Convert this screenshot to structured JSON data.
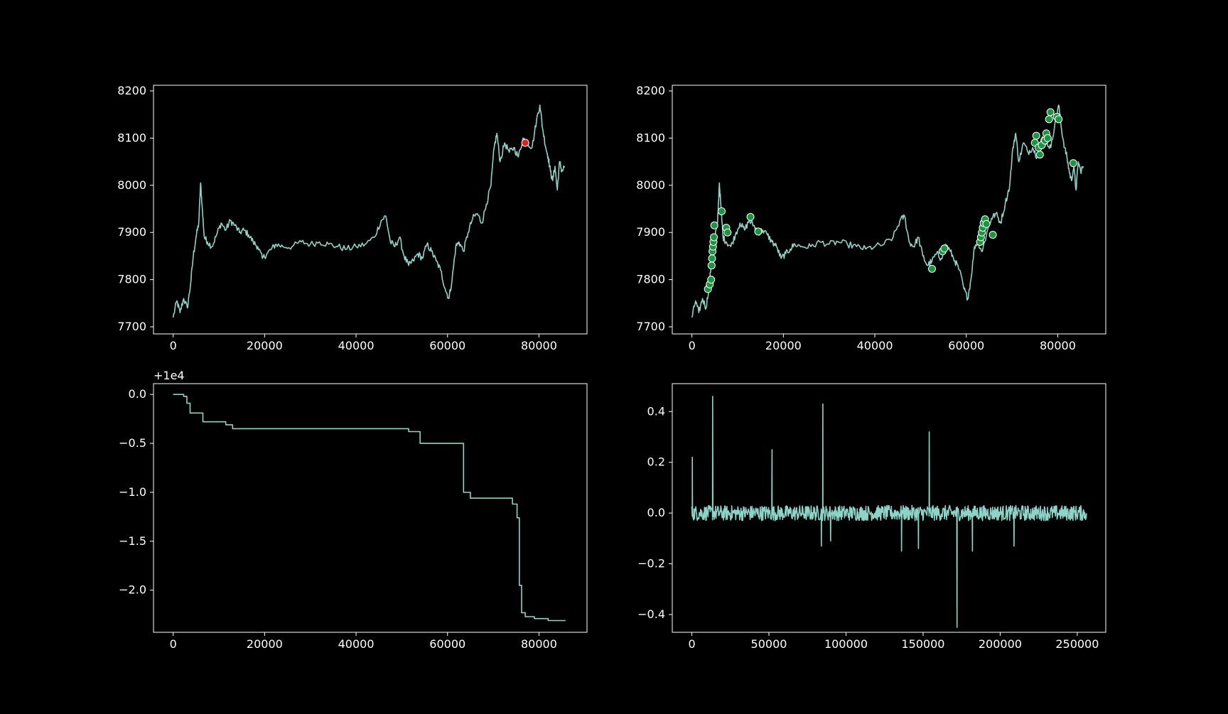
{
  "figure": {
    "background": "#000000",
    "foreground": "#ffffff",
    "line_color": "#8dd3c7"
  },
  "chart_data": [
    {
      "type": "line",
      "panel": "top-left",
      "title": "",
      "xlabel": "",
      "ylabel": "",
      "xlim": [
        -4300,
        90500
      ],
      "ylim": [
        7685,
        8212
      ],
      "xticks": [
        0,
        20000,
        40000,
        60000,
        80000
      ],
      "yticks": [
        7700,
        7800,
        7900,
        8000,
        8100,
        8200
      ],
      "x": [
        0,
        800,
        1500,
        2300,
        3100,
        3800,
        4400,
        5000,
        5600,
        6000,
        6300,
        6800,
        7500,
        8500,
        9500,
        10500,
        11500,
        12500,
        13500,
        14500,
        15500,
        16500,
        17500,
        18500,
        19500,
        20500,
        21500,
        22500,
        24000,
        26000,
        28000,
        30000,
        32000,
        34000,
        36000,
        38000,
        40000,
        42000,
        44000,
        45500,
        46500,
        47500,
        48500,
        49500,
        50500,
        51500,
        52500,
        53500,
        54500,
        55500,
        56500,
        57500,
        58500,
        59500,
        60300,
        61000,
        61800,
        62500,
        63500,
        64500,
        65500,
        66500,
        67500,
        68500,
        69500,
        70200,
        70800,
        71500,
        72500,
        73500,
        74500,
        75500,
        76500,
        77500,
        78500,
        79500,
        80200,
        80800,
        81500,
        82000,
        82500,
        83000,
        83500,
        84000,
        84500,
        85000,
        85600
      ],
      "values": [
        7720,
        7755,
        7730,
        7760,
        7740,
        7790,
        7850,
        7890,
        7920,
        8005,
        7960,
        7890,
        7880,
        7870,
        7895,
        7920,
        7905,
        7925,
        7915,
        7900,
        7905,
        7895,
        7880,
        7870,
        7845,
        7855,
        7865,
        7875,
        7870,
        7870,
        7880,
        7875,
        7880,
        7875,
        7870,
        7865,
        7870,
        7875,
        7890,
        7925,
        7935,
        7880,
        7870,
        7890,
        7850,
        7830,
        7840,
        7855,
        7845,
        7875,
        7860,
        7840,
        7820,
        7780,
        7760,
        7800,
        7870,
        7880,
        7860,
        7900,
        7930,
        7940,
        7920,
        7960,
        8000,
        8080,
        8110,
        8050,
        8090,
        8070,
        8080,
        8060,
        8100,
        8090,
        8080,
        8140,
        8170,
        8120,
        8080,
        8060,
        8030,
        8010,
        8040,
        7990,
        8050,
        8030,
        8040
      ],
      "markers": [
        {
          "x": 77000,
          "y": 8090,
          "color": "#e41a1c"
        }
      ]
    },
    {
      "type": "line",
      "panel": "top-right",
      "title": "",
      "xlabel": "",
      "ylabel": "",
      "xlim": [
        -4300,
        90500
      ],
      "ylim": [
        7685,
        8212
      ],
      "xticks": [
        0,
        20000,
        40000,
        60000,
        80000
      ],
      "yticks": [
        7700,
        7800,
        7900,
        8000,
        8100,
        8200
      ],
      "x": [
        0,
        800,
        1500,
        2300,
        3100,
        3800,
        4400,
        5000,
        5600,
        6000,
        6300,
        6800,
        7500,
        8500,
        9500,
        10500,
        11500,
        12500,
        13500,
        14500,
        15500,
        16500,
        17500,
        18500,
        19500,
        20500,
        21500,
        22500,
        24000,
        26000,
        28000,
        30000,
        32000,
        34000,
        36000,
        38000,
        40000,
        42000,
        44000,
        45500,
        46500,
        47500,
        48500,
        49500,
        50500,
        51500,
        52500,
        53500,
        54500,
        55500,
        56500,
        57500,
        58500,
        59500,
        60300,
        61000,
        61800,
        62500,
        63500,
        64500,
        65500,
        66500,
        67500,
        68500,
        69500,
        70200,
        70800,
        71500,
        72500,
        73500,
        74500,
        75500,
        76500,
        77500,
        78500,
        79500,
        80200,
        80800,
        81500,
        82000,
        82500,
        83000,
        83500,
        84000,
        84500,
        85000,
        85600
      ],
      "values": [
        7720,
        7755,
        7730,
        7760,
        7740,
        7790,
        7850,
        7890,
        7920,
        8005,
        7960,
        7890,
        7880,
        7870,
        7895,
        7920,
        7905,
        7925,
        7915,
        7900,
        7905,
        7895,
        7880,
        7870,
        7845,
        7855,
        7865,
        7875,
        7870,
        7870,
        7880,
        7875,
        7880,
        7875,
        7870,
        7865,
        7870,
        7875,
        7890,
        7925,
        7935,
        7880,
        7870,
        7890,
        7850,
        7830,
        7840,
        7855,
        7845,
        7875,
        7860,
        7840,
        7820,
        7780,
        7760,
        7800,
        7870,
        7880,
        7860,
        7900,
        7930,
        7940,
        7920,
        7960,
        8000,
        8080,
        8110,
        8050,
        8090,
        8070,
        8080,
        8060,
        8100,
        8090,
        8080,
        8140,
        8170,
        8120,
        8080,
        8060,
        8030,
        8010,
        8040,
        7990,
        8050,
        8030,
        8040
      ],
      "markers": [
        {
          "x": 3500,
          "y": 7780,
          "color": "#1a9641"
        },
        {
          "x": 3900,
          "y": 7790,
          "color": "#1a9641"
        },
        {
          "x": 4200,
          "y": 7800,
          "color": "#1a9641"
        },
        {
          "x": 4300,
          "y": 7830,
          "color": "#1a9641"
        },
        {
          "x": 4400,
          "y": 7845,
          "color": "#1a9641"
        },
        {
          "x": 4500,
          "y": 7860,
          "color": "#1a9641"
        },
        {
          "x": 4600,
          "y": 7870,
          "color": "#1a9641"
        },
        {
          "x": 4700,
          "y": 7880,
          "color": "#1a9641"
        },
        {
          "x": 4800,
          "y": 7890,
          "color": "#1a9641"
        },
        {
          "x": 4900,
          "y": 7915,
          "color": "#1a9641"
        },
        {
          "x": 6500,
          "y": 7945,
          "color": "#1a9641"
        },
        {
          "x": 7500,
          "y": 7910,
          "color": "#1a9641"
        },
        {
          "x": 7800,
          "y": 7900,
          "color": "#1a9641"
        },
        {
          "x": 12800,
          "y": 7933,
          "color": "#1a9641"
        },
        {
          "x": 14500,
          "y": 7902,
          "color": "#1a9641"
        },
        {
          "x": 52500,
          "y": 7823,
          "color": "#1a9641"
        },
        {
          "x": 54800,
          "y": 7860,
          "color": "#1a9641"
        },
        {
          "x": 55200,
          "y": 7866,
          "color": "#1a9641"
        },
        {
          "x": 63000,
          "y": 7880,
          "color": "#1a9641"
        },
        {
          "x": 63200,
          "y": 7890,
          "color": "#1a9641"
        },
        {
          "x": 63400,
          "y": 7900,
          "color": "#1a9641"
        },
        {
          "x": 63600,
          "y": 7910,
          "color": "#1a9641"
        },
        {
          "x": 63800,
          "y": 7920,
          "color": "#1a9641"
        },
        {
          "x": 64100,
          "y": 7928,
          "color": "#1a9641"
        },
        {
          "x": 64400,
          "y": 7918,
          "color": "#1a9641"
        },
        {
          "x": 65800,
          "y": 7895,
          "color": "#1a9641"
        },
        {
          "x": 75000,
          "y": 8090,
          "color": "#1a9641"
        },
        {
          "x": 75300,
          "y": 8105,
          "color": "#1a9641"
        },
        {
          "x": 75800,
          "y": 8080,
          "color": "#1a9641"
        },
        {
          "x": 76100,
          "y": 8065,
          "color": "#1a9641"
        },
        {
          "x": 76500,
          "y": 8085,
          "color": "#1a9641"
        },
        {
          "x": 77200,
          "y": 8095,
          "color": "#1a9641"
        },
        {
          "x": 77500,
          "y": 8110,
          "color": "#1a9641"
        },
        {
          "x": 77800,
          "y": 8100,
          "color": "#1a9641"
        },
        {
          "x": 78100,
          "y": 8140,
          "color": "#1a9641"
        },
        {
          "x": 78400,
          "y": 8155,
          "color": "#1a9641"
        },
        {
          "x": 79800,
          "y": 8145,
          "color": "#1a9641"
        },
        {
          "x": 80200,
          "y": 8140,
          "color": "#1a9641"
        },
        {
          "x": 83400,
          "y": 8047,
          "color": "#1a9641"
        }
      ]
    },
    {
      "type": "line",
      "panel": "bottom-left",
      "title": "",
      "xlabel": "",
      "ylabel": "",
      "offset_label": "+1e4",
      "xlim": [
        -4300,
        90500
      ],
      "ylim": [
        -2.43,
        0.11
      ],
      "xticks": [
        0,
        20000,
        40000,
        60000,
        80000
      ],
      "yticks": [
        0.0,
        -0.5,
        -1.0,
        -1.5,
        -2.0
      ],
      "ytick_labels": [
        "0.0",
        "−0.5",
        "−1.0",
        "−1.5",
        "−2.0"
      ],
      "step": true,
      "x": [
        0,
        2300,
        3000,
        3700,
        6500,
        11500,
        13000,
        51500,
        54000,
        62200,
        63500,
        65000,
        74200,
        75200,
        75700,
        76200,
        77000,
        79000,
        82000,
        85800
      ],
      "values": [
        0.0,
        -0.02,
        -0.09,
        -0.19,
        -0.28,
        -0.31,
        -0.35,
        -0.38,
        -0.5,
        -0.5,
        -1.0,
        -1.06,
        -1.12,
        -1.26,
        -1.95,
        -2.23,
        -2.27,
        -2.29,
        -2.31,
        -2.31
      ]
    },
    {
      "type": "line",
      "panel": "bottom-right",
      "title": "",
      "xlabel": "",
      "ylabel": "",
      "xlim": [
        -12700,
        268500
      ],
      "ylim": [
        -0.47,
        0.51
      ],
      "xticks": [
        0,
        50000,
        100000,
        150000,
        200000,
        250000
      ],
      "yticks": [
        0.4,
        0.2,
        0.0,
        -0.2,
        -0.4
      ],
      "ytick_labels": [
        "0.4",
        "0.2",
        "0.0",
        "−0.2",
        "−0.4"
      ],
      "noise_amplitude": 0.03,
      "x_range": [
        0,
        256000
      ],
      "spikes": [
        {
          "x": 300,
          "y": 0.22
        },
        {
          "x": 13500,
          "y": 0.46
        },
        {
          "x": 52000,
          "y": 0.25
        },
        {
          "x": 85000,
          "y": 0.43
        },
        {
          "x": 154000,
          "y": 0.32
        },
        {
          "x": 136000,
          "y": -0.15
        },
        {
          "x": 147000,
          "y": -0.14
        },
        {
          "x": 172000,
          "y": -0.45
        },
        {
          "x": 84000,
          "y": -0.13
        },
        {
          "x": 90000,
          "y": -0.11
        },
        {
          "x": 182000,
          "y": -0.15
        },
        {
          "x": 209000,
          "y": -0.13
        }
      ]
    }
  ]
}
